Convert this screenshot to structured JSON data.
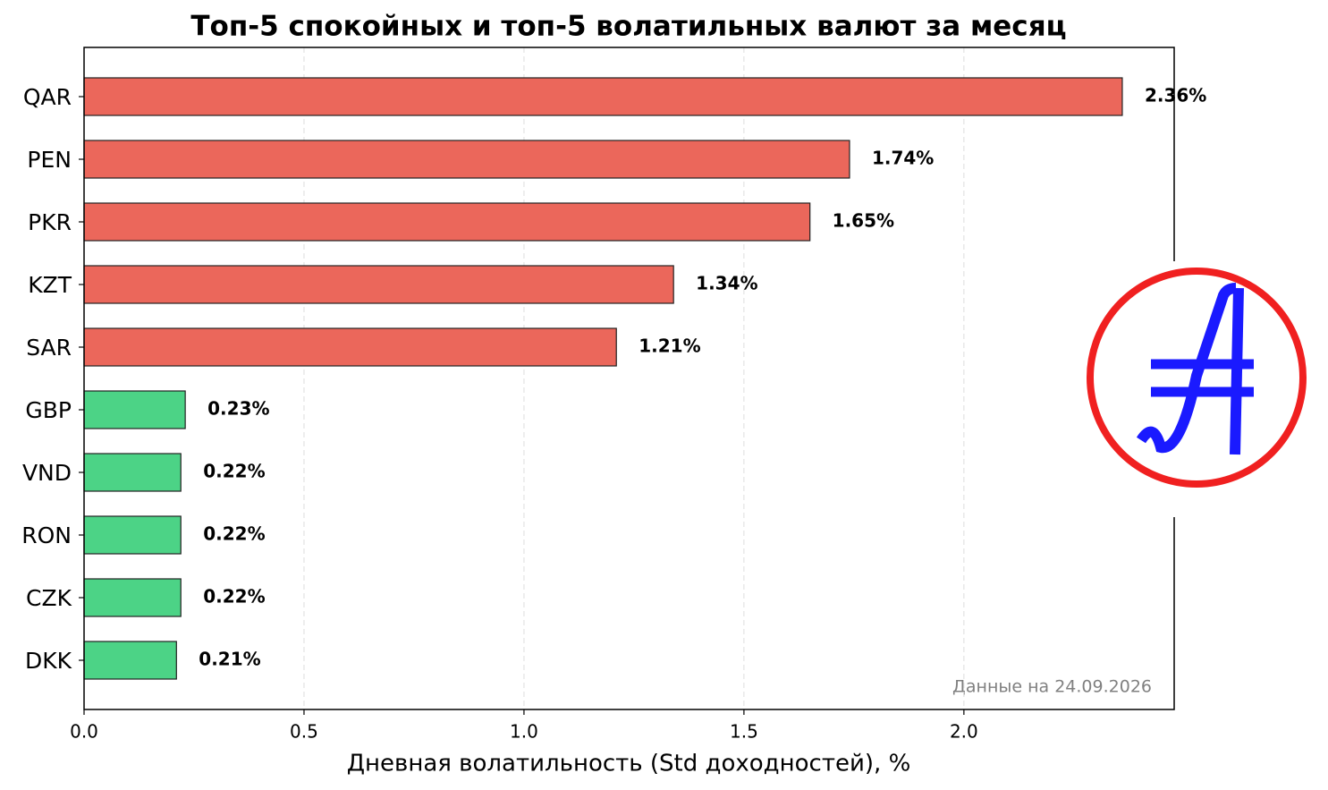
{
  "chart_data": {
    "type": "bar",
    "orientation": "horizontal",
    "title": "Топ-5 спокойных и топ-5 волатильных валют за месяц",
    "x_label": "Дневная волатильность (Std доходностей), %",
    "annotation": "Данные на 24.09.2026",
    "categories": [
      "QAR",
      "PEN",
      "PKR",
      "KZT",
      "SAR",
      "GBP",
      "VND",
      "RON",
      "CZK",
      "DKK"
    ],
    "values": [
      2.36,
      1.74,
      1.65,
      1.34,
      1.21,
      0.23,
      0.22,
      0.22,
      0.22,
      0.21
    ],
    "value_labels": [
      "2.36%",
      "1.74%",
      "1.65%",
      "1.34%",
      "1.21%",
      "0.23%",
      "0.22%",
      "0.22%",
      "0.22%",
      "0.21%"
    ],
    "colors": [
      "#eb675b",
      "#eb675b",
      "#eb675b",
      "#eb675b",
      "#eb675b",
      "#4cd386",
      "#4cd386",
      "#4cd386",
      "#4cd386",
      "#4cd386"
    ],
    "xlim": [
      0,
      2.478
    ],
    "xticks": [
      {
        "value": 0,
        "label": "0.0"
      },
      0.5,
      {
        "value": 1,
        "label": "1.0"
      },
      1.5,
      {
        "value": 2,
        "label": "2.0"
      }
    ],
    "grid": true
  }
}
